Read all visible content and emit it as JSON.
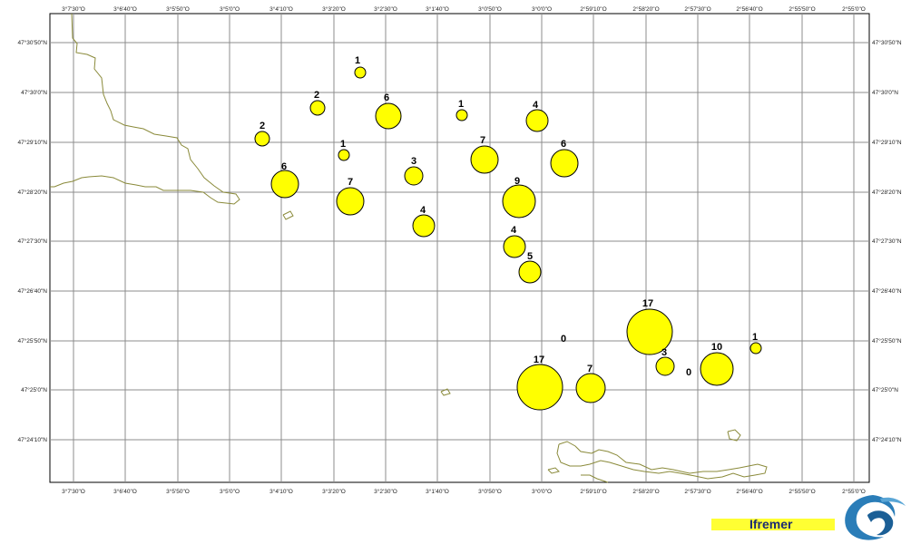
{
  "map": {
    "top_ticks": [
      "3°7'30\"O",
      "3°6'40\"O",
      "3°5'50\"O",
      "3°5'0\"O",
      "3°4'10\"O",
      "3°3'20\"O",
      "3°2'30\"O",
      "3°1'40\"O",
      "3°0'50\"O",
      "3°0'0\"O",
      "2°59'10\"O",
      "2°58'20\"O",
      "2°57'30\"O",
      "2°56'40\"O",
      "2°55'50\"O",
      "2°55'0\"O"
    ],
    "bottom_ticks": [
      "3°7'30\"O",
      "3°6'40\"O",
      "3°5'50\"O",
      "3°5'0\"O",
      "3°4'10\"O",
      "3°3'20\"O",
      "3°2'30\"O",
      "3°1'40\"O",
      "3°0'50\"O",
      "3°0'0\"O",
      "2°59'10\"O",
      "2°58'20\"O",
      "2°57'30\"O",
      "2°56'40\"O",
      "2°55'50\"O",
      "2°55'0\"O"
    ],
    "left_ticks": [
      "47°30'50\"N",
      "47°30'0\"N",
      "47°29'10\"N",
      "47°28'20\"N",
      "47°27'30\"N",
      "47°26'40\"N",
      "47°25'50\"N",
      "47°25'0\"N",
      "47°24'10\"N"
    ],
    "right_ticks": [
      "47°30'50\"N",
      "47°30'0\"N",
      "47°29'10\"N",
      "47°28'20\"N",
      "47°27'30\"N",
      "47°26'40\"N",
      "47°25'50\"N",
      "47°25'0\"N",
      "47°24'10\"N"
    ],
    "symbol_color": "#ffff00",
    "coast_color": "#8a8a3a",
    "stations": [
      {
        "count": "1"
      },
      {
        "count": "2"
      },
      {
        "count": "6"
      },
      {
        "count": "1"
      },
      {
        "count": "4"
      },
      {
        "count": "2"
      },
      {
        "count": "1"
      },
      {
        "count": "7"
      },
      {
        "count": "6"
      },
      {
        "count": "6"
      },
      {
        "count": "3"
      },
      {
        "count": "9"
      },
      {
        "count": "7"
      },
      {
        "count": "4"
      },
      {
        "count": "4"
      },
      {
        "count": "5"
      },
      {
        "count": "17"
      },
      {
        "count": "0"
      },
      {
        "count": "10"
      },
      {
        "count": "1"
      },
      {
        "count": "3"
      },
      {
        "count": "0"
      },
      {
        "count": "17"
      },
      {
        "count": "7"
      }
    ]
  },
  "logo": {
    "name": "Ifremer"
  }
}
